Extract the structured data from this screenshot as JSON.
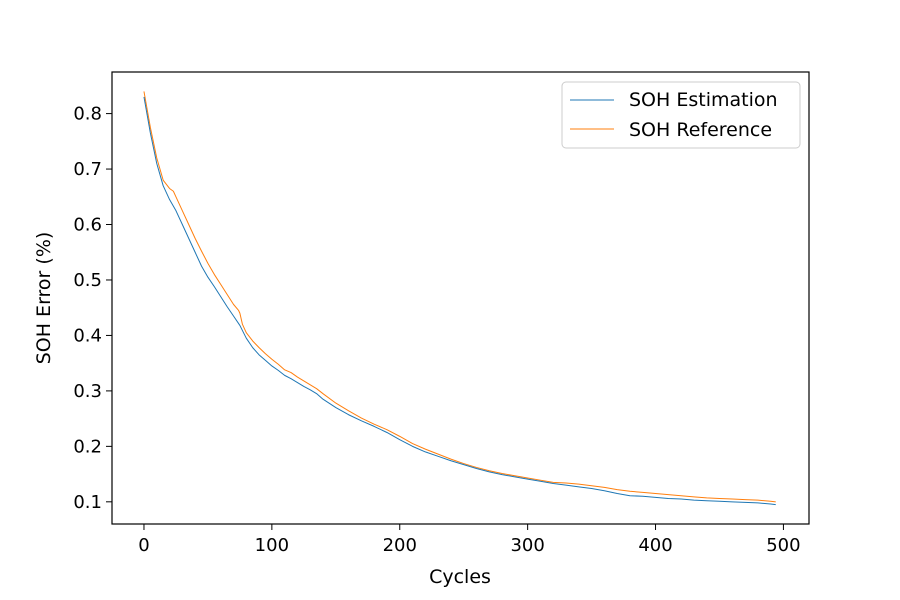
{
  "chart_data": {
    "type": "line",
    "title": "",
    "xlabel": "Cycles",
    "ylabel": "SOH Error (%)",
    "xlim": [
      -25,
      520
    ],
    "ylim": [
      0.06,
      0.875
    ],
    "xticks": [
      0,
      100,
      200,
      300,
      400,
      500
    ],
    "yticks": [
      0.1,
      0.2,
      0.3,
      0.4,
      0.5,
      0.6,
      0.7,
      0.8
    ],
    "grid": false,
    "legend": "top-right",
    "series": [
      {
        "name": "SOH Estimation",
        "color": "#1f77b4",
        "x": [
          0,
          5,
          10,
          15,
          20,
          25,
          30,
          35,
          40,
          45,
          50,
          55,
          60,
          65,
          70,
          75,
          80,
          85,
          90,
          95,
          100,
          105,
          110,
          115,
          120,
          125,
          130,
          135,
          140,
          150,
          160,
          170,
          180,
          190,
          200,
          210,
          220,
          230,
          240,
          250,
          260,
          270,
          280,
          290,
          300,
          310,
          320,
          330,
          340,
          350,
          360,
          370,
          380,
          390,
          400,
          410,
          420,
          430,
          440,
          450,
          460,
          470,
          480,
          490,
          494
        ],
        "y": [
          0.83,
          0.765,
          0.71,
          0.67,
          0.645,
          0.625,
          0.6,
          0.575,
          0.55,
          0.525,
          0.505,
          0.488,
          0.47,
          0.452,
          0.435,
          0.418,
          0.395,
          0.378,
          0.365,
          0.355,
          0.345,
          0.337,
          0.328,
          0.322,
          0.315,
          0.308,
          0.302,
          0.295,
          0.285,
          0.27,
          0.257,
          0.246,
          0.236,
          0.225,
          0.212,
          0.2,
          0.19,
          0.182,
          0.174,
          0.167,
          0.16,
          0.154,
          0.149,
          0.145,
          0.141,
          0.137,
          0.133,
          0.13,
          0.127,
          0.124,
          0.12,
          0.115,
          0.111,
          0.11,
          0.108,
          0.106,
          0.105,
          0.103,
          0.102,
          0.101,
          0.1,
          0.099,
          0.098,
          0.096,
          0.095
        ]
      },
      {
        "name": "SOH Reference",
        "color": "#ff7f0e",
        "x": [
          0,
          5,
          10,
          15,
          20,
          23,
          25,
          30,
          35,
          40,
          45,
          50,
          55,
          60,
          65,
          70,
          74,
          75,
          77,
          80,
          85,
          90,
          95,
          100,
          105,
          110,
          115,
          120,
          125,
          130,
          135,
          140,
          150,
          160,
          170,
          180,
          190,
          200,
          210,
          220,
          230,
          240,
          250,
          260,
          270,
          280,
          290,
          300,
          310,
          320,
          330,
          340,
          350,
          360,
          370,
          380,
          390,
          400,
          410,
          420,
          430,
          440,
          450,
          460,
          470,
          480,
          490,
          494
        ],
        "y": [
          0.84,
          0.775,
          0.72,
          0.68,
          0.665,
          0.66,
          0.65,
          0.625,
          0.6,
          0.575,
          0.552,
          0.53,
          0.51,
          0.492,
          0.474,
          0.456,
          0.445,
          0.44,
          0.42,
          0.405,
          0.39,
          0.378,
          0.367,
          0.357,
          0.348,
          0.338,
          0.333,
          0.325,
          0.318,
          0.311,
          0.304,
          0.295,
          0.278,
          0.264,
          0.251,
          0.24,
          0.23,
          0.218,
          0.205,
          0.195,
          0.186,
          0.177,
          0.169,
          0.162,
          0.156,
          0.151,
          0.147,
          0.143,
          0.139,
          0.135,
          0.134,
          0.132,
          0.129,
          0.126,
          0.122,
          0.119,
          0.117,
          0.115,
          0.113,
          0.111,
          0.109,
          0.107,
          0.106,
          0.105,
          0.104,
          0.103,
          0.101,
          0.1
        ]
      }
    ]
  }
}
